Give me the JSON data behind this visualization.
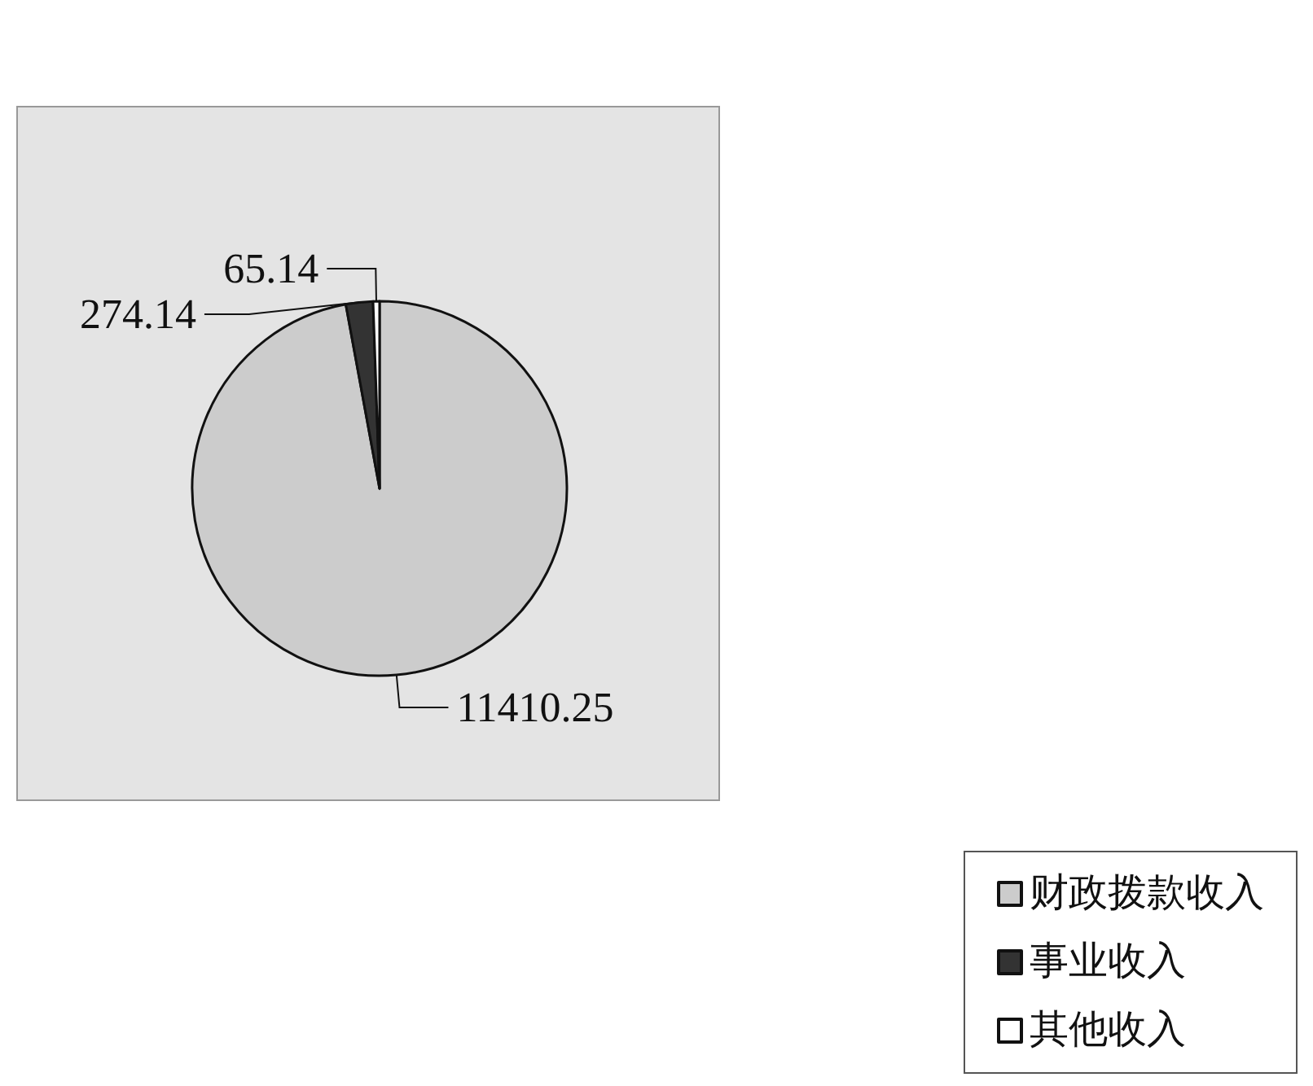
{
  "chart_data": {
    "type": "pie",
    "categories": [
      "财政拨款收入",
      "事业收入",
      "其他收入"
    ],
    "values": [
      11410.25,
      274.14,
      65.14
    ],
    "colors": [
      "#cccccc",
      "#333333",
      "#ffffff"
    ],
    "data_labels": true,
    "legend": "bottom right"
  }
}
